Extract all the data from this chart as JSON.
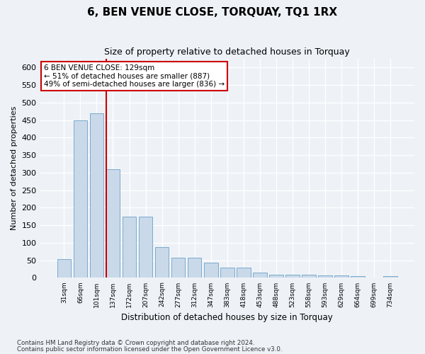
{
  "title": "6, BEN VENUE CLOSE, TORQUAY, TQ1 1RX",
  "subtitle": "Size of property relative to detached houses in Torquay",
  "xlabel": "Distribution of detached houses by size in Torquay",
  "ylabel": "Number of detached properties",
  "categories": [
    "31sqm",
    "66sqm",
    "101sqm",
    "137sqm",
    "172sqm",
    "207sqm",
    "242sqm",
    "277sqm",
    "312sqm",
    "347sqm",
    "383sqm",
    "418sqm",
    "453sqm",
    "488sqm",
    "523sqm",
    "558sqm",
    "593sqm",
    "629sqm",
    "664sqm",
    "699sqm",
    "734sqm"
  ],
  "values": [
    53,
    450,
    470,
    310,
    175,
    175,
    88,
    57,
    57,
    43,
    30,
    30,
    15,
    9,
    8,
    8,
    7,
    7,
    5,
    1,
    4
  ],
  "bar_color": "#c9d9ea",
  "bar_edge_color": "#7aabcc",
  "vline_index": 3,
  "vline_color": "#cc0000",
  "annotation_line1": "6 BEN VENUE CLOSE: 129sqm",
  "annotation_line2": "← 51% of detached houses are smaller (887)",
  "annotation_line3": "49% of semi-detached houses are larger (836) →",
  "annotation_box_color": "#ffffff",
  "annotation_box_edge": "#cc0000",
  "ylim": [
    0,
    625
  ],
  "yticks": [
    0,
    50,
    100,
    150,
    200,
    250,
    300,
    350,
    400,
    450,
    500,
    550,
    600
  ],
  "footer1": "Contains HM Land Registry data © Crown copyright and database right 2024.",
  "footer2": "Contains public sector information licensed under the Open Government Licence v3.0.",
  "background_color": "#eef2f7",
  "plot_bg_color": "#eef2f7"
}
